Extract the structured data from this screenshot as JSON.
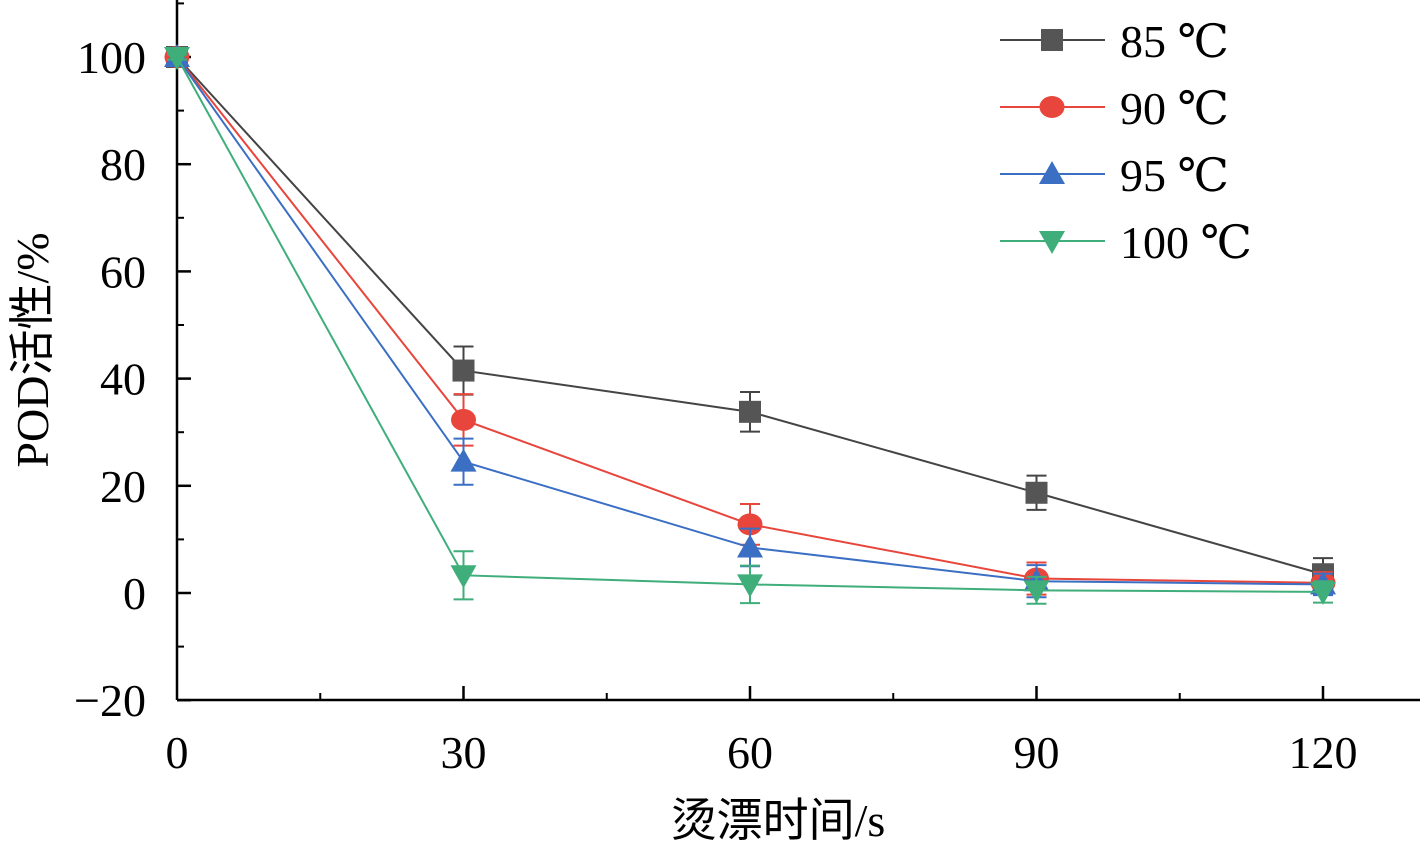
{
  "chart_data": {
    "type": "line",
    "xlabel": "烫漂时间/s",
    "ylabel": "POD活性/%",
    "x": [
      0,
      30,
      60,
      90,
      120
    ],
    "x_ticks": [
      "0",
      "30",
      "60",
      "90",
      "120"
    ],
    "y_ticks": [
      "−20",
      "0",
      "20",
      "40",
      "60",
      "80",
      "100"
    ],
    "xlim": [
      0,
      127
    ],
    "ylim": [
      -20,
      110
    ],
    "legend_position": "top-right",
    "grid": false,
    "series": [
      {
        "name": "85 ℃",
        "color": "#444444",
        "marker": "square",
        "markerColor": "#555555",
        "values": [
          100,
          41.5,
          33.8,
          18.7,
          3.5
        ],
        "errors": [
          0.5,
          4.5,
          3.7,
          3.2,
          3.0
        ]
      },
      {
        "name": "90 ℃",
        "color": "#e8453c",
        "marker": "circle",
        "markerColor": "#e8453c",
        "values": [
          100,
          32.3,
          12.8,
          2.7,
          1.9
        ],
        "errors": [
          0.5,
          4.8,
          3.8,
          3.0,
          2.0
        ]
      },
      {
        "name": "95 ℃",
        "color": "#3b6fc4",
        "marker": "triangle-up",
        "markerColor": "#3b6fc4",
        "values": [
          100,
          24.5,
          8.5,
          2.2,
          1.6
        ],
        "errors": [
          0.5,
          4.3,
          3.5,
          3.0,
          2.0
        ]
      },
      {
        "name": "100 ℃",
        "color": "#3fae7a",
        "marker": "triangle-down",
        "markerColor": "#3fae7a",
        "values": [
          100,
          3.3,
          1.6,
          0.5,
          0.2
        ],
        "errors": [
          0.5,
          4.5,
          3.5,
          2.5,
          2.0
        ]
      }
    ]
  }
}
